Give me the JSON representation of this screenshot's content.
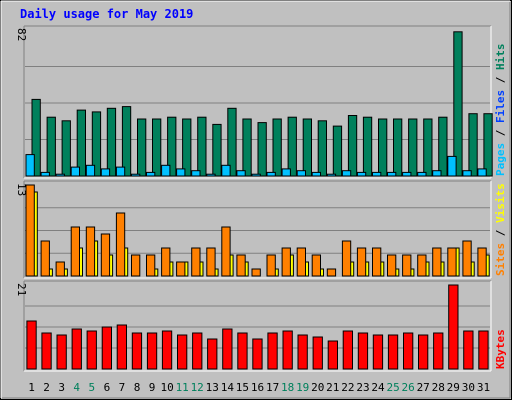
{
  "chart_data": {
    "type": "bar",
    "title": "Daily usage for May 2019",
    "categories": [
      "1",
      "2",
      "3",
      "4",
      "5",
      "6",
      "7",
      "8",
      "9",
      "10",
      "11",
      "12",
      "13",
      "14",
      "15",
      "16",
      "17",
      "18",
      "19",
      "20",
      "21",
      "22",
      "23",
      "24",
      "25",
      "26",
      "27",
      "28",
      "29",
      "30",
      "31"
    ],
    "weekend_days": [
      "4",
      "5",
      "11",
      "12",
      "18",
      "19",
      "25",
      "26"
    ],
    "panels": [
      {
        "name": "pages-files-hits",
        "ymax": 82,
        "ymax_label": "82",
        "side_label": [
          {
            "text": "Pages",
            "color": "#00c0ff"
          },
          {
            "text": " / ",
            "color": "#000000"
          },
          {
            "text": "Files",
            "color": "#0040ff"
          },
          {
            "text": " / ",
            "color": "#000000"
          },
          {
            "text": "Hits",
            "color": "#00805c"
          }
        ],
        "series": [
          {
            "name": "Hits",
            "color": "#00805c",
            "values": [
              43,
              33,
              31,
              37,
              36,
              38,
              39,
              32,
              32,
              33,
              32,
              33,
              29,
              38,
              32,
              30,
              32,
              33,
              32,
              31,
              28,
              34,
              33,
              32,
              32,
              32,
              32,
              33,
              81,
              35,
              35
            ]
          },
          {
            "name": "Files",
            "color": "#0040ff",
            "values": [
              0,
              0,
              0,
              0,
              0,
              0,
              0,
              0,
              0,
              0,
              0,
              0,
              0,
              0,
              0,
              0,
              0,
              0,
              0,
              0,
              0,
              0,
              0,
              0,
              0,
              0,
              0,
              0,
              0,
              0,
              0
            ]
          },
          {
            "name": "Pages",
            "color": "#00c0ff",
            "values": [
              12,
              2,
              1,
              5,
              6,
              4,
              5,
              1,
              2,
              6,
              4,
              3,
              1,
              6,
              3,
              1,
              2,
              4,
              3,
              2,
              1,
              3,
              2,
              2,
              2,
              2,
              2,
              3,
              11,
              3,
              4
            ]
          }
        ]
      },
      {
        "name": "sites-visits",
        "ymax": 13,
        "ymax_label": "13",
        "side_label": [
          {
            "text": "Sites",
            "color": "#ff8000"
          },
          {
            "text": " / ",
            "color": "#000000"
          },
          {
            "text": "Visits",
            "color": "#ffff00"
          }
        ],
        "series": [
          {
            "name": "Visits",
            "color": "#ffff00",
            "values": [
              12,
              1,
              1,
              4,
              5,
              3,
              4,
              0,
              1,
              2,
              2,
              2,
              1,
              3,
              2,
              0,
              1,
              3,
              2,
              1,
              0,
              2,
              2,
              2,
              1,
              1,
              2,
              2,
              4,
              2,
              3
            ]
          },
          {
            "name": "Sites",
            "color": "#ff8000",
            "values": [
              13,
              5,
              2,
              7,
              7,
              6,
              9,
              3,
              3,
              4,
              2,
              4,
              4,
              7,
              3,
              1,
              3,
              4,
              4,
              3,
              1,
              5,
              4,
              4,
              3,
              3,
              3,
              4,
              4,
              5,
              4
            ]
          }
        ]
      },
      {
        "name": "kbytes",
        "ymax": 21,
        "ymax_label": "21",
        "side_label": [
          {
            "text": "KBytes",
            "color": "#ff0000"
          }
        ],
        "series": [
          {
            "name": "KBytes",
            "color": "#ff0000",
            "values": [
              12,
              9,
              8.5,
              10,
              9.5,
              10.5,
              11,
              9,
              9,
              9.5,
              8.5,
              9,
              7.5,
              10,
              9,
              7.5,
              9,
              9.5,
              8.5,
              8,
              7,
              9.5,
              9,
              8.5,
              8.5,
              9,
              8.5,
              9,
              21,
              9.5,
              9.5
            ]
          }
        ]
      }
    ],
    "colors": {
      "background": "#c0c0c0",
      "title": "#0000ff",
      "weekend_label": "#00805c",
      "weekday_label": "#000000",
      "gridline": "#808080"
    }
  }
}
